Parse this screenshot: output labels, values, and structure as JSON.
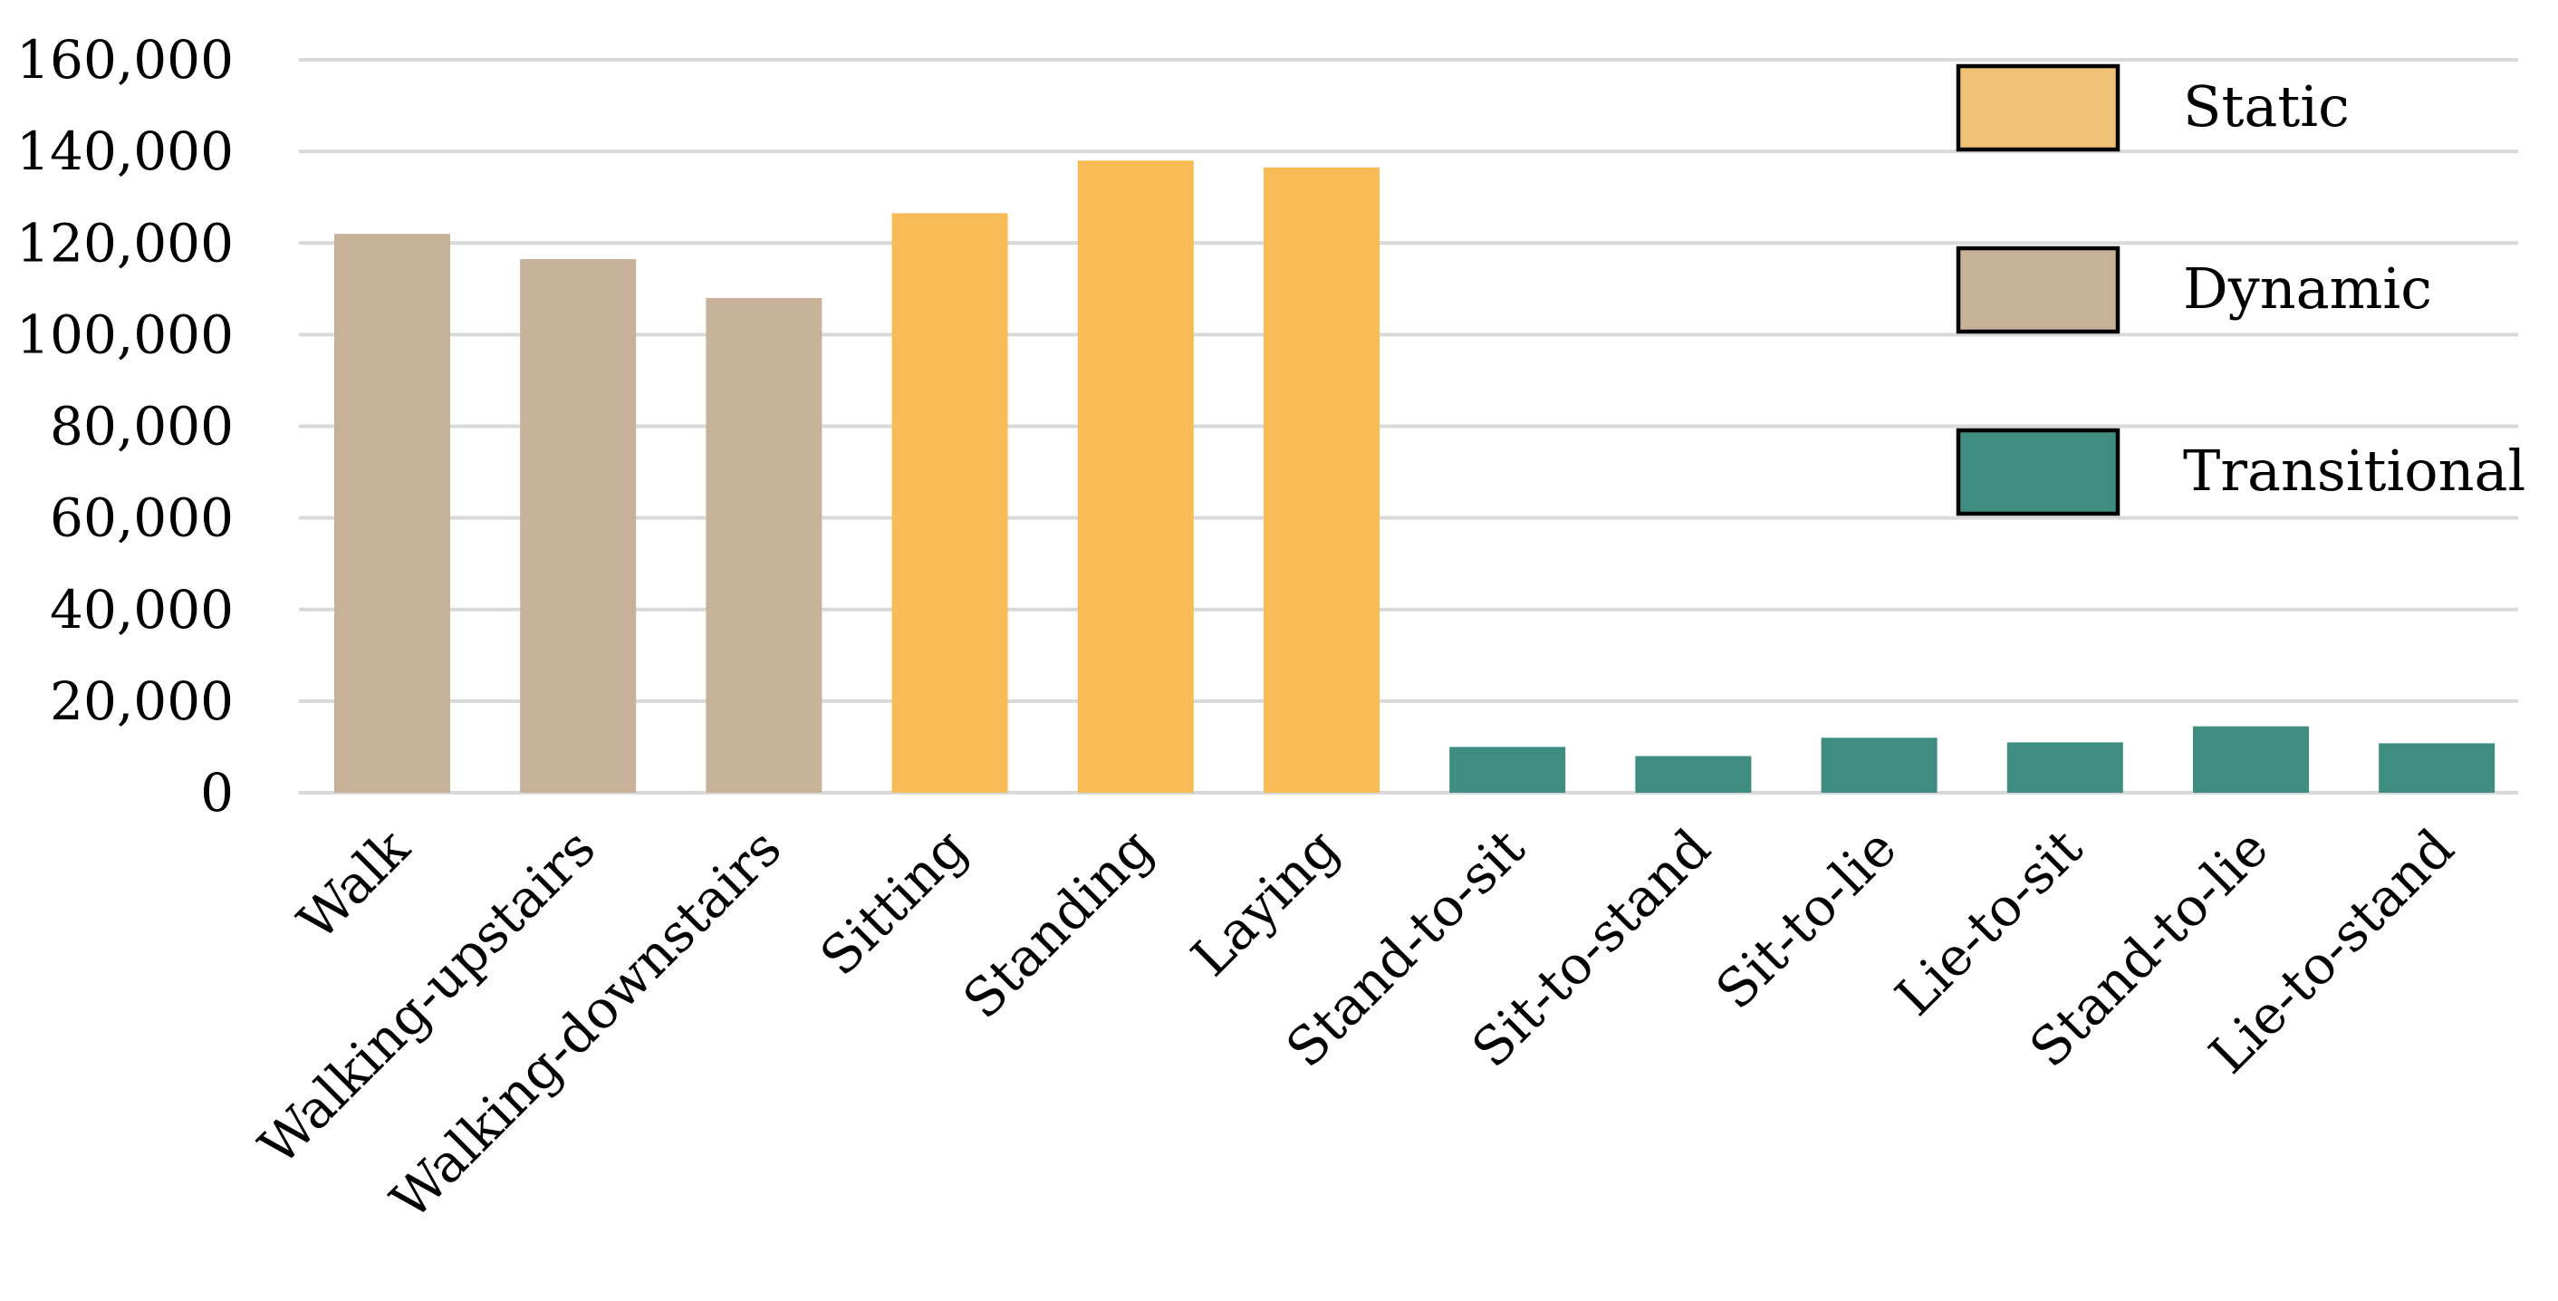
{
  "chart_data": {
    "type": "bar",
    "categories": [
      "Walk",
      "Walking-upstairs",
      "Walking-downstairs",
      "Sitting",
      "Standing",
      "Laying",
      "Stand-to-sit",
      "Sit-to-stand",
      "Sit-to-lie",
      "Lie-to-sit",
      "Stand-to-lie",
      "Lie-to-stand"
    ],
    "values": [
      122000,
      116500,
      108000,
      126500,
      138000,
      136500,
      10000,
      8000,
      12000,
      11000,
      14500,
      10800
    ],
    "groups": [
      "Dynamic",
      "Dynamic",
      "Dynamic",
      "Static",
      "Static",
      "Static",
      "Transitional",
      "Transitional",
      "Transitional",
      "Transitional",
      "Transitional",
      "Transitional"
    ],
    "legend": [
      {
        "name": "Static",
        "color": "#f0c275"
      },
      {
        "name": "Dynamic",
        "color": "#c8b199"
      },
      {
        "name": "Transitional",
        "color": "#3e8d80"
      }
    ],
    "bar_colors": {
      "Static": "#f8bb55",
      "Dynamic": "#c8b199",
      "Transitional": "#3e8d80"
    },
    "ylim": [
      0,
      160000
    ],
    "yticks": [
      0,
      20000,
      40000,
      60000,
      80000,
      100000,
      120000,
      140000,
      160000
    ],
    "ytick_labels": [
      "0",
      "20,000",
      "40,000",
      "60,000",
      "80,000",
      "100,000",
      "120,000",
      "140,000",
      "160,000"
    ],
    "grid": true,
    "legend_position": "top-right",
    "title": "",
    "xlabel": "",
    "ylabel": ""
  }
}
